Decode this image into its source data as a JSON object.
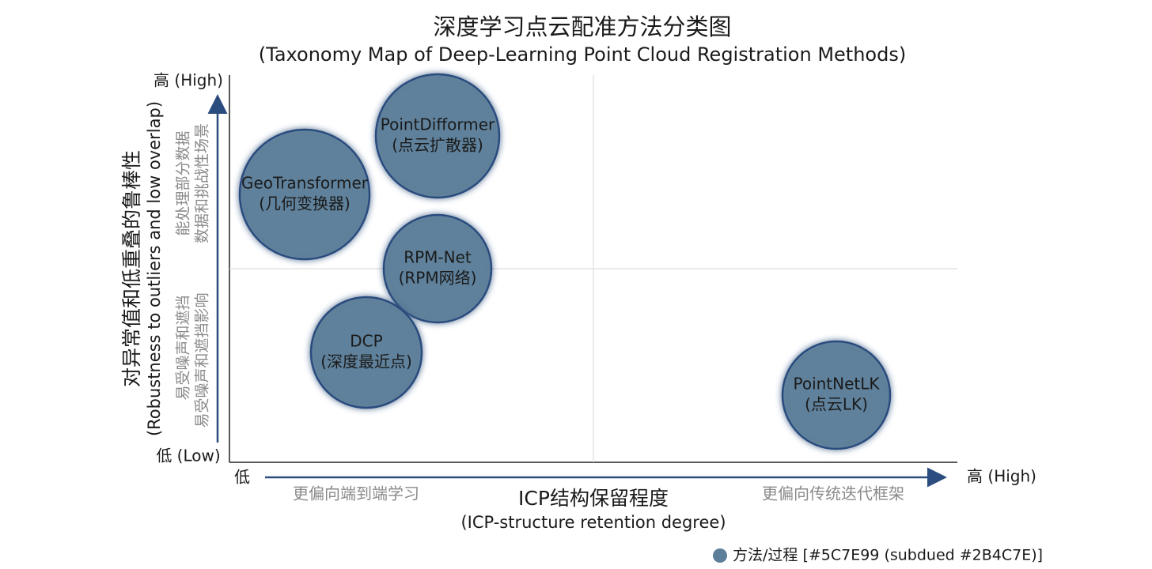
{
  "header": {
    "title": "深度学习点云配准方法分类图",
    "subtitle": "(Taxonomy Map of Deep-Learning Point Cloud Registration Methods)"
  },
  "y_axis": {
    "title": "对异常值和低重叠的鲁棒性",
    "subtitle": "(Robustness to outliers and low overlap)",
    "high": "高 (High)",
    "low": "低 (Low)",
    "upper_note": [
      "能处理部分数据",
      "数据和挑战性场景"
    ],
    "lower_note": [
      "易受噪声和遮挡",
      "易受噪声和遮挡影响"
    ]
  },
  "x_axis": {
    "title": "ICP结构保留程度",
    "subtitle": "(ICP-structure retention degree)",
    "low": "低",
    "high": "高 (High)",
    "left_note": "更偏向端到端学习",
    "right_note": "更偏向传统迭代框架"
  },
  "nodes": [
    {
      "name": "PointDifformer",
      "label": "(点云扩散器)"
    },
    {
      "name": "GeoTransformer",
      "label": "(几何变换器)"
    },
    {
      "name": "RPM-Net",
      "label": "(RPM网络)"
    },
    {
      "name": "DCP",
      "label": "(深度最近点)"
    },
    {
      "name": "PointNetLK",
      "label": "(点云LK)"
    }
  ],
  "legend": {
    "label": "方法/过程 [#5C7E99 (subdued #2B4C7E)]"
  }
}
